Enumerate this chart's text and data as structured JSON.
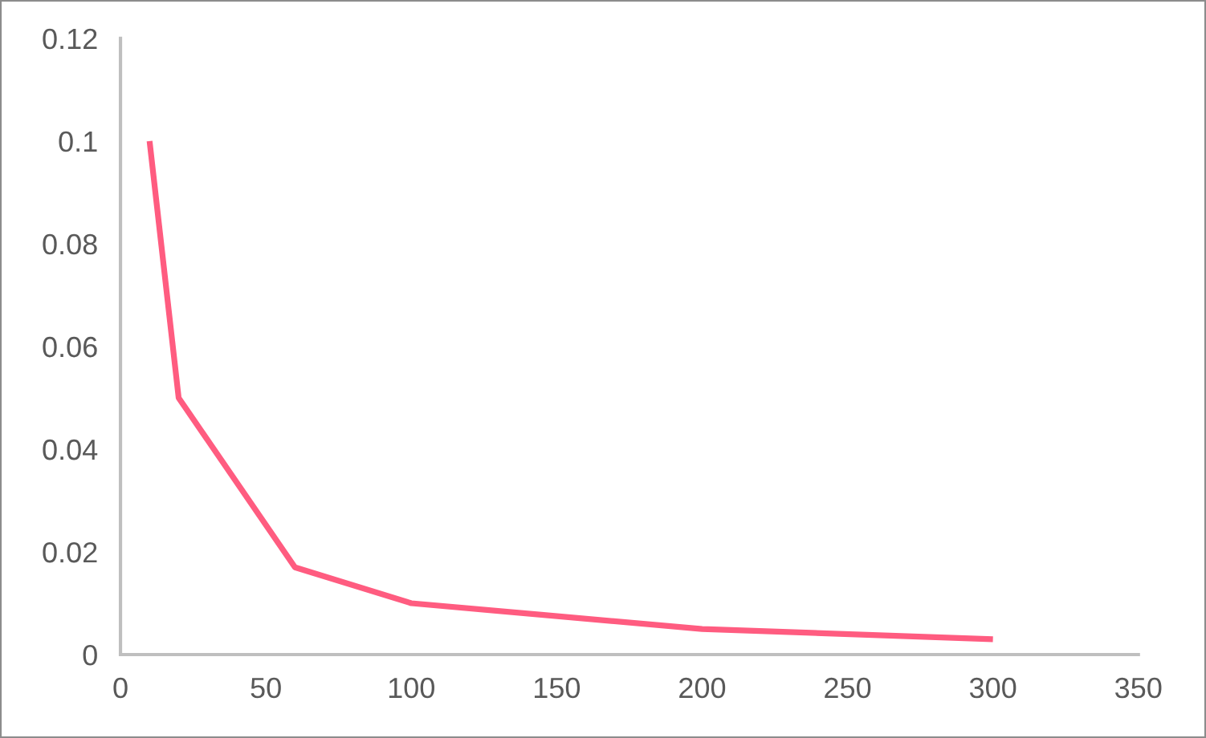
{
  "chart_data": {
    "type": "line",
    "x": [
      10,
      20,
      60,
      100,
      200,
      300
    ],
    "values": [
      0.1,
      0.05,
      0.017,
      0.01,
      0.005,
      0.003
    ],
    "color": "#ff5c80",
    "xlim": [
      0,
      350
    ],
    "xticks": [
      0,
      50,
      100,
      150,
      200,
      250,
      300,
      350
    ],
    "ylim": [
      0,
      0.12
    ],
    "yticks": [
      0,
      0.02,
      0.04,
      0.06,
      0.08,
      0.1,
      0.12
    ],
    "grid": false
  }
}
